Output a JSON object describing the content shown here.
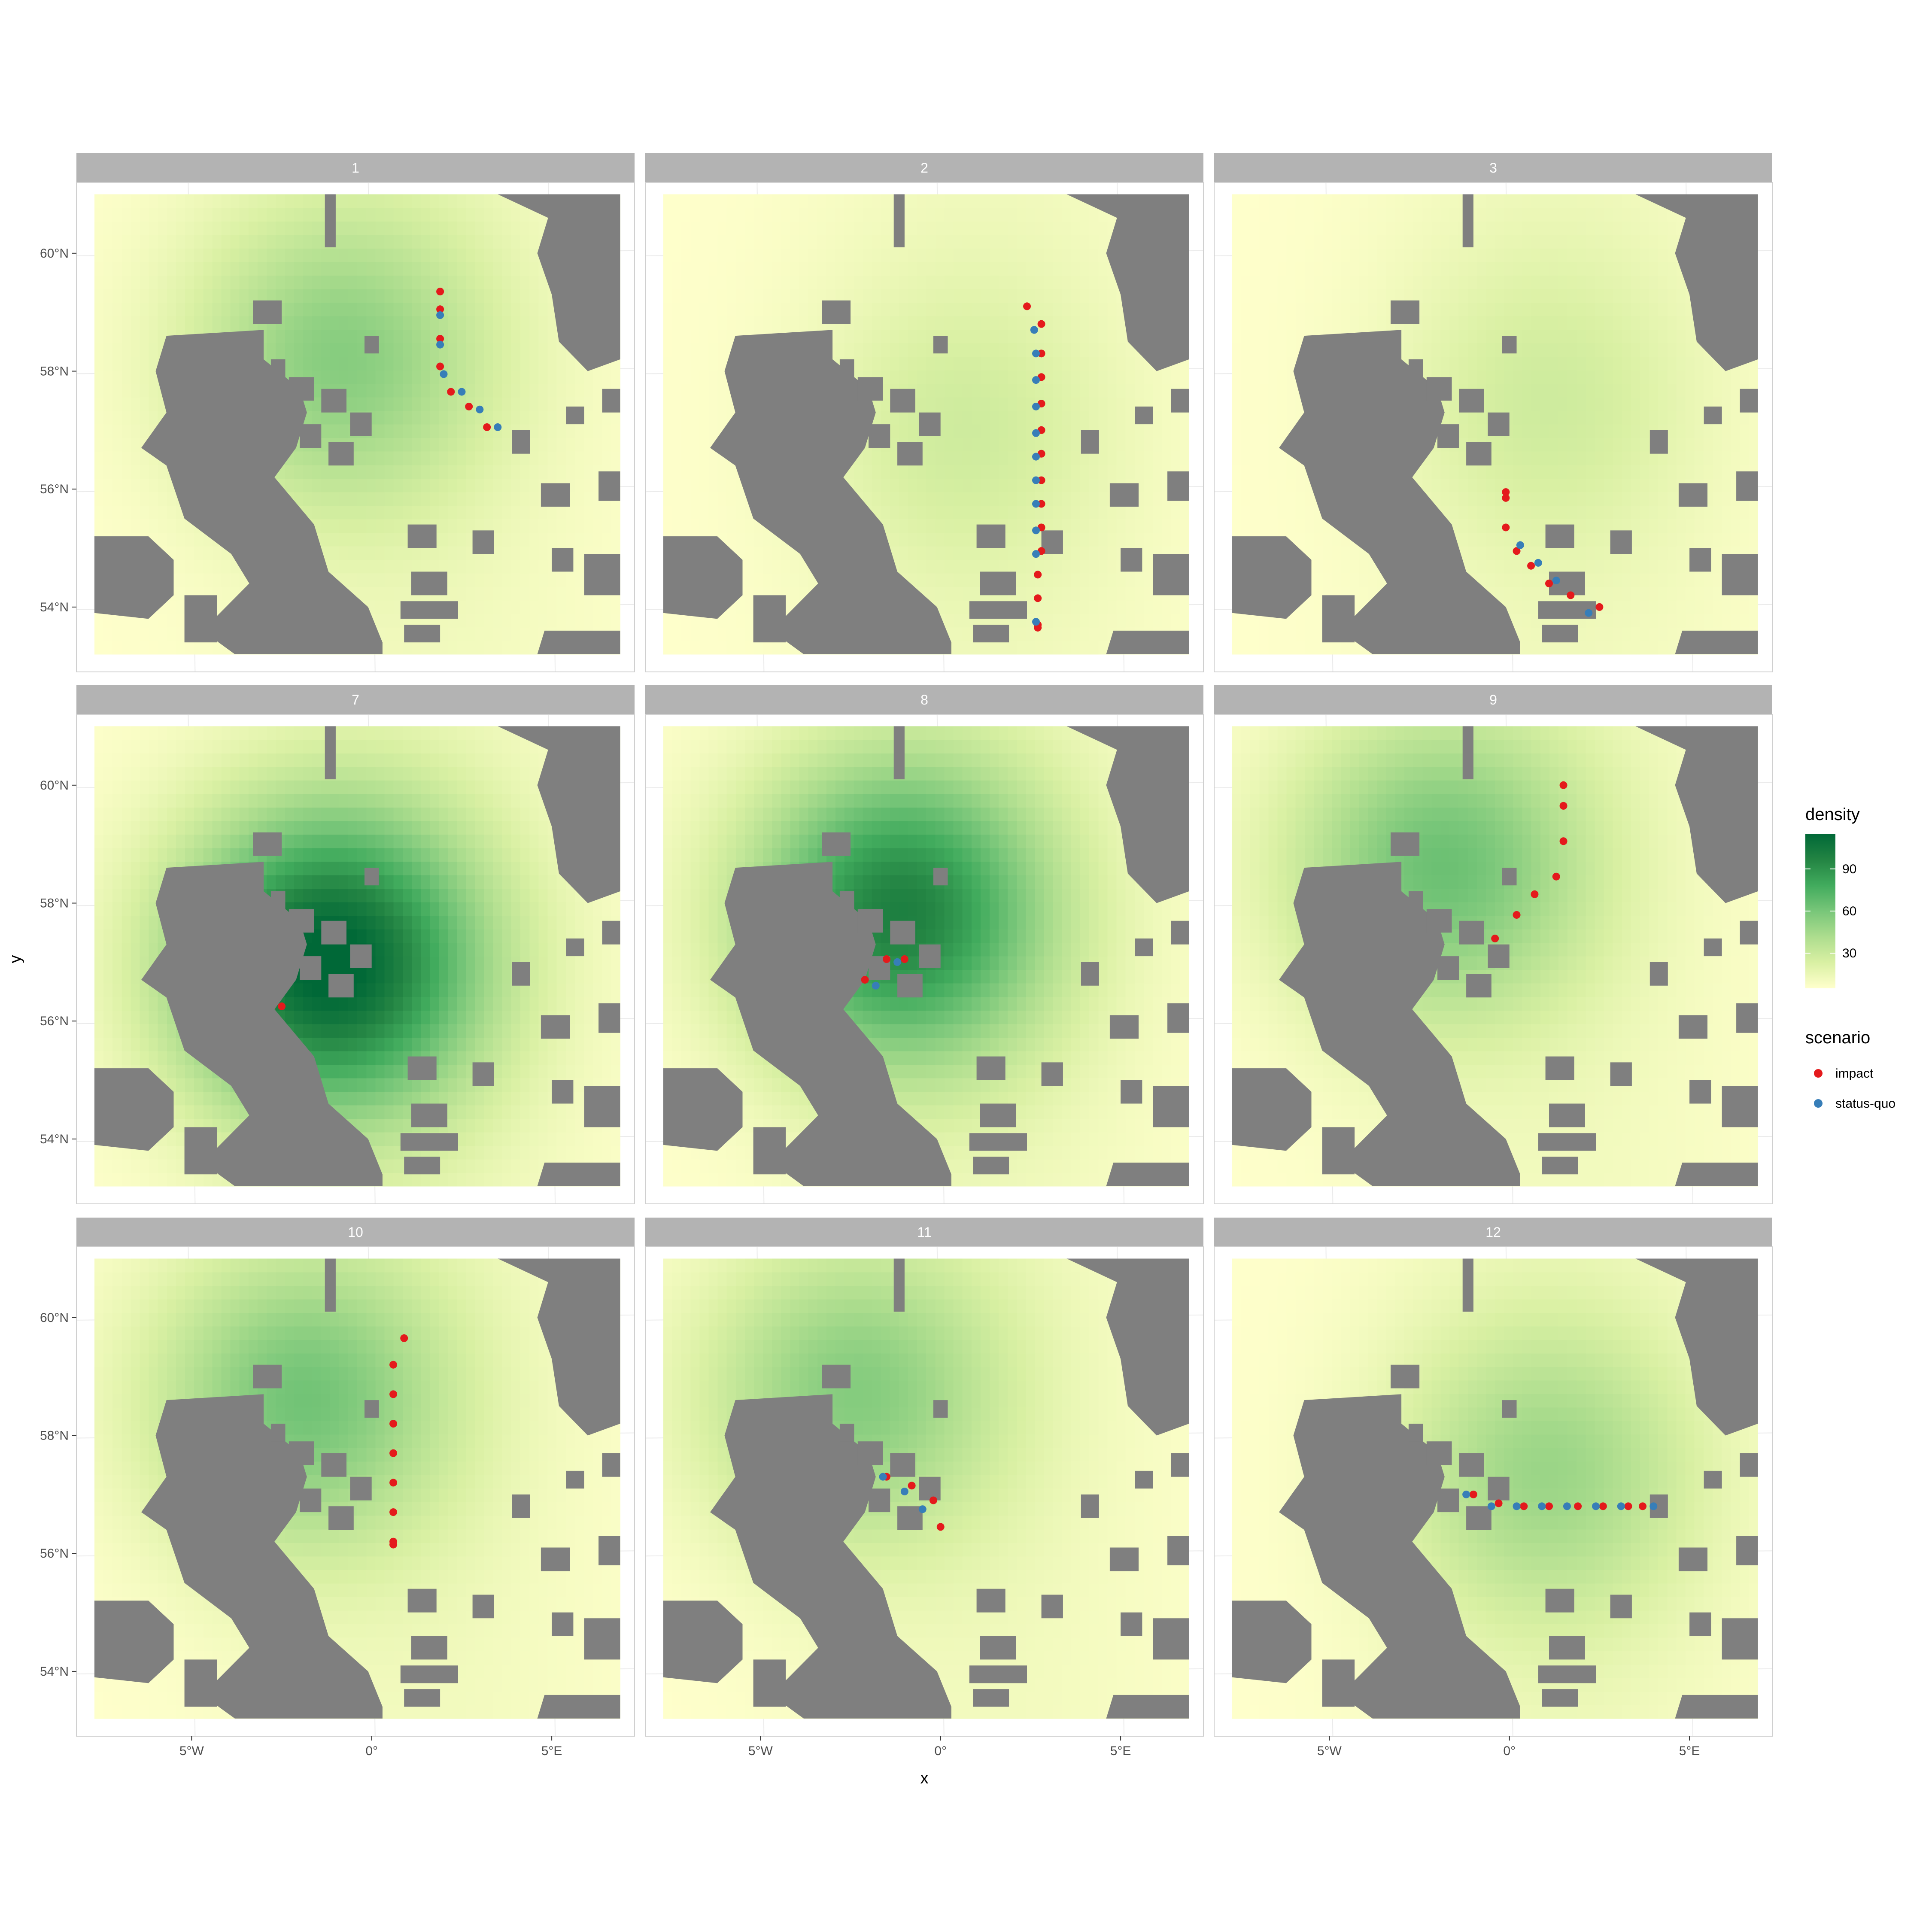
{
  "chart_data": {
    "type": "scatter",
    "layout": "facet-wrap 3 columns over a density raster map",
    "xlabel": "x",
    "ylabel": "y",
    "x_ticks": [
      {
        "value": -5,
        "label": "5°W"
      },
      {
        "value": 0,
        "label": "0°"
      },
      {
        "value": 5,
        "label": "5°E"
      }
    ],
    "y_ticks": [
      {
        "value": 54,
        "label": "54°N"
      },
      {
        "value": 56,
        "label": "56°N"
      },
      {
        "value": 58,
        "label": "58°N"
      },
      {
        "value": 60,
        "label": "60°N"
      }
    ],
    "xlim": [
      -8.2,
      7.3
    ],
    "ylim": [
      52.9,
      61.2
    ],
    "raster_extent": {
      "x": [
        -7.7,
        6.9
      ],
      "y": [
        53.2,
        61.0
      ]
    },
    "grid": true,
    "fill_legend": {
      "title": "density",
      "breaks": [
        30,
        60,
        90
      ],
      "range": [
        5,
        115
      ],
      "palette": [
        "#ffffcc",
        "#d9f0a3",
        "#addd8e",
        "#78c679",
        "#41ab5d",
        "#238443",
        "#006837"
      ],
      "position": "right"
    },
    "color_legend": {
      "title": "scenario",
      "position": "right",
      "entries": [
        {
          "key": "impact",
          "label": "impact",
          "color": "#e41a1c"
        },
        {
          "key": "status-quo",
          "label": "status-quo",
          "color": "#377eb8"
        }
      ]
    },
    "land_color": "#7f7f7f",
    "panels": [
      {
        "label": "1",
        "hotspot": {
          "x": -1.0,
          "y": 58.2,
          "peak": 50
        },
        "impact": [
          [
            1.9,
            59.35
          ],
          [
            1.9,
            59.05
          ],
          [
            1.9,
            58.55
          ],
          [
            1.9,
            58.08
          ],
          [
            2.2,
            57.65
          ],
          [
            2.7,
            57.4
          ],
          [
            3.2,
            57.05
          ]
        ],
        "status_quo": [
          [
            1.9,
            58.95
          ],
          [
            1.9,
            58.45
          ],
          [
            2.0,
            57.95
          ],
          [
            2.5,
            57.65
          ],
          [
            3.0,
            57.35
          ],
          [
            3.5,
            57.05
          ]
        ]
      },
      {
        "label": "2",
        "hotspot": {
          "x": 0.5,
          "y": 57.0,
          "peak": 22
        },
        "impact": [
          [
            2.4,
            59.1
          ],
          [
            2.8,
            58.8
          ],
          [
            2.8,
            58.3
          ],
          [
            2.8,
            57.9
          ],
          [
            2.8,
            57.45
          ],
          [
            2.8,
            57.0
          ],
          [
            2.8,
            56.6
          ],
          [
            2.8,
            56.15
          ],
          [
            2.8,
            55.75
          ],
          [
            2.8,
            55.35
          ],
          [
            2.8,
            54.95
          ],
          [
            2.7,
            54.55
          ],
          [
            2.7,
            54.15
          ],
          [
            2.7,
            53.7
          ],
          [
            2.7,
            53.65
          ]
        ],
        "status_quo": [
          [
            2.6,
            58.7
          ],
          [
            2.65,
            58.3
          ],
          [
            2.65,
            57.85
          ],
          [
            2.65,
            57.4
          ],
          [
            2.65,
            56.95
          ],
          [
            2.65,
            56.55
          ],
          [
            2.65,
            56.15
          ],
          [
            2.65,
            55.75
          ],
          [
            2.65,
            55.3
          ],
          [
            2.65,
            54.9
          ],
          [
            2.65,
            53.75
          ]
        ]
      },
      {
        "label": "3",
        "hotspot": {
          "x": 1.0,
          "y": 57.5,
          "peak": 22
        },
        "impact": [
          [
            -0.1,
            55.95
          ],
          [
            -0.1,
            55.85
          ],
          [
            -0.1,
            55.35
          ],
          [
            0.2,
            54.95
          ],
          [
            0.6,
            54.7
          ],
          [
            1.1,
            54.4
          ],
          [
            1.7,
            54.2
          ],
          [
            2.5,
            54.0
          ]
        ],
        "status_quo": [
          [
            0.3,
            55.05
          ],
          [
            0.8,
            54.75
          ],
          [
            1.3,
            54.45
          ],
          [
            2.2,
            53.9
          ]
        ]
      },
      {
        "label": "7",
        "hotspot": {
          "x": -1.2,
          "y": 57.0,
          "peak": 115
        },
        "impact": [
          [
            -2.5,
            56.25
          ]
        ],
        "status_quo": []
      },
      {
        "label": "8",
        "hotspot": {
          "x": -1.2,
          "y": 57.8,
          "peak": 95
        },
        "impact": [
          [
            -2.1,
            56.7
          ],
          [
            -1.5,
            57.05
          ],
          [
            -1.0,
            57.05
          ]
        ],
        "status_quo": [
          [
            -1.8,
            56.6
          ],
          [
            -1.2,
            57.0
          ]
        ]
      },
      {
        "label": "9",
        "hotspot": {
          "x": -2.0,
          "y": 58.6,
          "peak": 60
        },
        "impact": [
          [
            1.5,
            60.0
          ],
          [
            1.5,
            59.65
          ],
          [
            1.5,
            59.05
          ],
          [
            1.3,
            58.45
          ],
          [
            0.7,
            58.15
          ],
          [
            0.2,
            57.8
          ],
          [
            -0.4,
            57.4
          ]
        ],
        "status_quo": []
      },
      {
        "label": "10",
        "hotspot": {
          "x": -2.0,
          "y": 58.6,
          "peak": 58
        },
        "impact": [
          [
            0.9,
            59.65
          ],
          [
            0.6,
            59.2
          ],
          [
            0.6,
            58.7
          ],
          [
            0.6,
            58.2
          ],
          [
            0.6,
            57.7
          ],
          [
            0.6,
            57.2
          ],
          [
            0.6,
            56.7
          ],
          [
            0.6,
            56.2
          ],
          [
            0.6,
            56.15
          ]
        ],
        "status_quo": []
      },
      {
        "label": "11",
        "hotspot": {
          "x": -2.5,
          "y": 58.7,
          "peak": 52
        },
        "impact": [
          [
            -1.5,
            57.3
          ],
          [
            -0.8,
            57.15
          ],
          [
            -0.2,
            56.9
          ],
          [
            0.0,
            56.45
          ]
        ],
        "status_quo": [
          [
            -1.6,
            57.3
          ],
          [
            -1.0,
            57.05
          ],
          [
            -0.5,
            56.75
          ]
        ]
      },
      {
        "label": "12",
        "hotspot": {
          "x": 1.0,
          "y": 57.4,
          "peak": 42
        },
        "impact": [
          [
            -1.0,
            57.0
          ],
          [
            -0.3,
            56.85
          ],
          [
            0.4,
            56.8
          ],
          [
            1.1,
            56.8
          ],
          [
            1.9,
            56.8
          ],
          [
            2.6,
            56.8
          ],
          [
            3.3,
            56.8
          ],
          [
            3.7,
            56.8
          ]
        ],
        "status_quo": [
          [
            -1.2,
            57.0
          ],
          [
            -0.5,
            56.8
          ],
          [
            0.2,
            56.8
          ],
          [
            0.9,
            56.8
          ],
          [
            1.6,
            56.8
          ],
          [
            2.4,
            56.8
          ],
          [
            3.1,
            56.8
          ],
          [
            4.0,
            56.8
          ]
        ]
      }
    ]
  }
}
